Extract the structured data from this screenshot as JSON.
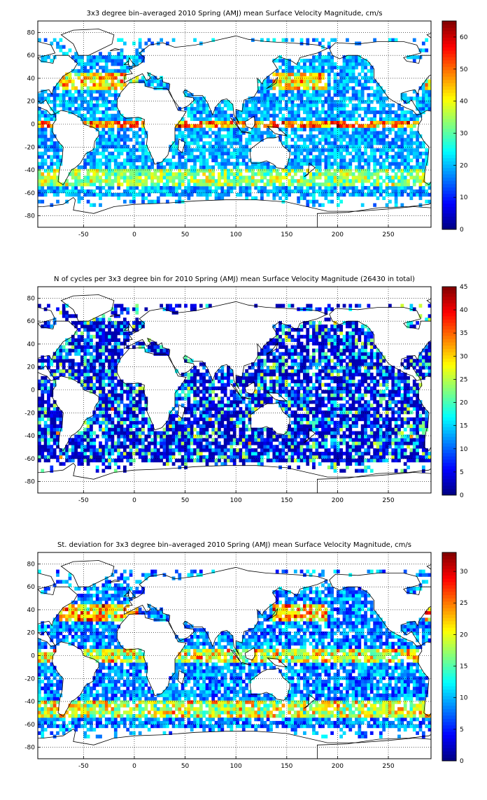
{
  "chart_data": [
    {
      "type": "heatmap",
      "title": "3x3 degree bin–averaged 2010 Spring (AMJ) mean Surface Velocity Magnitude, cm/s",
      "xlabel": "",
      "ylabel": "",
      "xlim": [
        -95,
        292
      ],
      "ylim": [
        -90,
        90
      ],
      "xticks": [
        -50,
        0,
        50,
        100,
        150,
        200,
        250
      ],
      "yticks": [
        80,
        60,
        40,
        20,
        0,
        -20,
        -40,
        -60,
        -80
      ],
      "colorbar": {
        "min": 0,
        "max": 65,
        "ticks": [
          0,
          10,
          20,
          30,
          40,
          50,
          60
        ]
      },
      "grid": true,
      "field": "velocity",
      "seed": 11
    },
    {
      "type": "heatmap",
      "title": "N of cycles per 3x3 degree bin for 2010 Spring (AMJ) mean Surface Velocity Magnitude (26430 in total)",
      "xlabel": "",
      "ylabel": "",
      "xlim": [
        -95,
        292
      ],
      "ylim": [
        -90,
        90
      ],
      "xticks": [
        -50,
        0,
        50,
        100,
        150,
        200,
        250
      ],
      "yticks": [
        80,
        60,
        40,
        20,
        0,
        -20,
        -40,
        -60,
        -80
      ],
      "colorbar": {
        "min": 0,
        "max": 45,
        "ticks": [
          0,
          5,
          10,
          15,
          20,
          25,
          30,
          35,
          40,
          45
        ]
      },
      "grid": true,
      "field": "count",
      "seed": 23
    },
    {
      "type": "heatmap",
      "title": "St. deviation for 3x3 degree bin–averaged 2010 Spring (AMJ) mean Surface Velocity Magnitude, cm/s",
      "xlabel": "",
      "ylabel": "",
      "xlim": [
        -95,
        292
      ],
      "ylim": [
        -90,
        90
      ],
      "xticks": [
        -50,
        0,
        50,
        100,
        150,
        200,
        250
      ],
      "yticks": [
        80,
        60,
        40,
        20,
        0,
        -20,
        -40,
        -60,
        -80
      ],
      "colorbar": {
        "min": 0,
        "max": 33,
        "ticks": [
          0,
          5,
          10,
          15,
          20,
          25,
          30
        ]
      },
      "grid": true,
      "field": "stddev",
      "seed": 37
    }
  ]
}
